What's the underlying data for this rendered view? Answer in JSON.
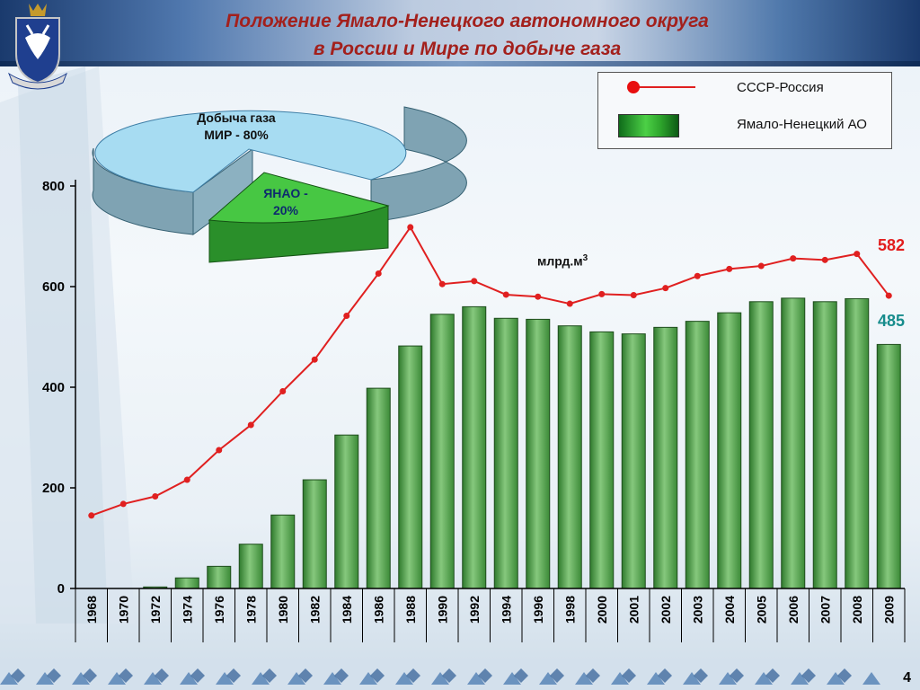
{
  "title": {
    "line1": "Положение Ямало-Ненецкого автономного округа",
    "line2": "в России и Мире по добыче газа"
  },
  "page_number": "4",
  "legend": {
    "series1_label": "СССР-Россия",
    "series2_label": "Ямало-Ненецкий АО"
  },
  "unit_label": "млрд.м",
  "unit_superscript": "3",
  "end_labels": {
    "russia": "582",
    "yanao": "485"
  },
  "pie": {
    "world_label_line1": "Добыча газа",
    "world_label_line2": "МИР - 80%",
    "yanao_label_line1": "ЯНАО -",
    "yanao_label_line2": "20%",
    "shares": {
      "world": 80,
      "yanao": 20
    }
  },
  "colors": {
    "title": "#a3201c",
    "line": "#e02020",
    "bar": "#5ea85a",
    "pie_world": "#9fd8f0",
    "pie_yanao": "#3fbf3a"
  },
  "chart_data": {
    "type": "bar",
    "categories": [
      "1968",
      "1970",
      "1972",
      "1974",
      "1976",
      "1978",
      "1980",
      "1982",
      "1984",
      "1986",
      "1988",
      "1990",
      "1992",
      "1994",
      "1996",
      "1998",
      "2000",
      "2001",
      "2002",
      "2003",
      "2004",
      "2005",
      "2006",
      "2007",
      "2008",
      "2009"
    ],
    "series": [
      {
        "name": "Ямало-Ненецкий АО",
        "kind": "bar",
        "values": [
          0,
          0,
          3,
          21,
          44,
          88,
          146,
          216,
          305,
          398,
          482,
          545,
          560,
          537,
          535,
          522,
          510,
          506,
          519,
          531,
          548,
          570,
          577,
          570,
          576,
          485
        ]
      },
      {
        "name": "СССР-Россия",
        "kind": "line",
        "values": [
          145,
          168,
          183,
          216,
          275,
          325,
          392,
          455,
          542,
          626,
          718,
          605,
          611,
          584,
          580,
          566,
          585,
          583,
          597,
          621,
          635,
          641,
          656,
          653,
          665,
          582
        ]
      }
    ],
    "ylim": [
      0,
      800
    ],
    "yticks": [
      "0",
      "200",
      "400",
      "600",
      "800"
    ],
    "xlabel": "",
    "ylabel": ""
  }
}
